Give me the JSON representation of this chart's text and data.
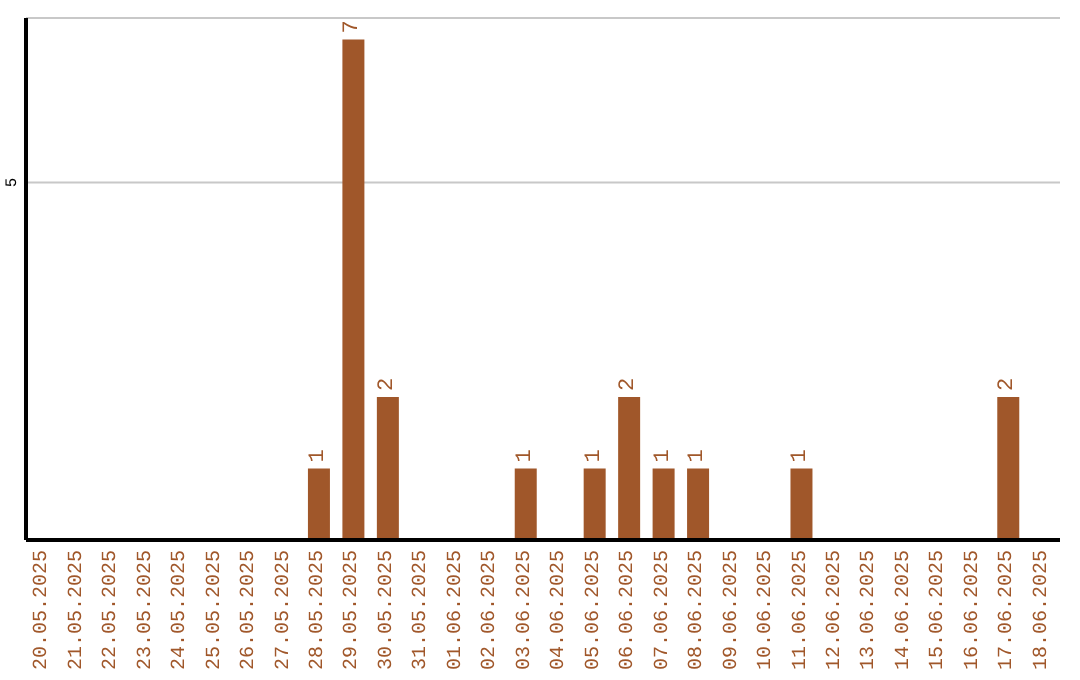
{
  "chart_data": {
    "type": "bar",
    "categories": [
      "20.05.2025",
      "21.05.2025",
      "22.05.2025",
      "23.05.2025",
      "24.05.2025",
      "25.05.2025",
      "26.05.2025",
      "27.05.2025",
      "28.05.2025",
      "29.05.2025",
      "30.05.2025",
      "31.05.2025",
      "01.06.2025",
      "02.06.2025",
      "03.06.2025",
      "04.06.2025",
      "05.06.2025",
      "06.06.2025",
      "07.06.2025",
      "08.06.2025",
      "09.06.2025",
      "10.06.2025",
      "11.06.2025",
      "12.06.2025",
      "13.06.2025",
      "14.06.2025",
      "15.06.2025",
      "16.06.2025",
      "17.06.2025",
      "18.06.2025"
    ],
    "values": [
      0,
      0,
      0,
      0,
      0,
      0,
      0,
      0,
      1,
      7,
      2,
      0,
      0,
      0,
      1,
      0,
      1,
      2,
      1,
      1,
      0,
      0,
      1,
      0,
      0,
      0,
      0,
      0,
      2,
      0
    ],
    "value_labels": [
      null,
      null,
      null,
      null,
      null,
      null,
      null,
      null,
      "1",
      "7",
      "2",
      null,
      null,
      null,
      "1",
      null,
      "1",
      "2",
      "1",
      "1",
      null,
      null,
      "1",
      null,
      null,
      null,
      null,
      null,
      "2",
      null
    ],
    "color": "#a0572a",
    "ylim": [
      0,
      7.3
    ],
    "yticks": [
      5
    ],
    "grid": "y",
    "legend": false
  }
}
